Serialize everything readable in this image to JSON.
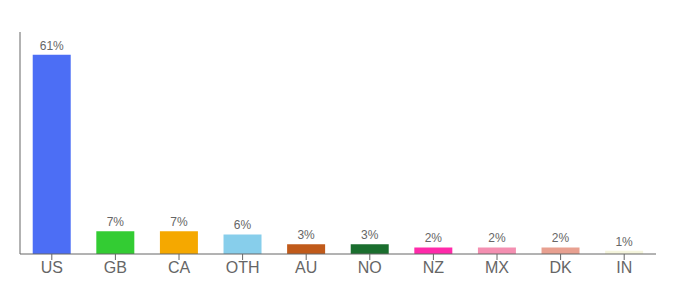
{
  "chart_data": {
    "type": "bar",
    "categories": [
      "US",
      "GB",
      "CA",
      "OTH",
      "AU",
      "NO",
      "NZ",
      "MX",
      "DK",
      "IN"
    ],
    "values": [
      61,
      7,
      7,
      6,
      3,
      3,
      2,
      2,
      2,
      1
    ],
    "value_labels": [
      "61%",
      "7%",
      "7%",
      "6%",
      "3%",
      "3%",
      "2%",
      "2%",
      "2%",
      "1%"
    ],
    "colors": [
      "#4c6ef5",
      "#33cc33",
      "#f5a800",
      "#87ceeb",
      "#c05a1a",
      "#1a6e2e",
      "#ff2aaa",
      "#f48fb1",
      "#e8a090",
      "#f5f5dc"
    ],
    "ylim": [
      0,
      68
    ],
    "data_labels": true,
    "tick_labels": "x"
  }
}
